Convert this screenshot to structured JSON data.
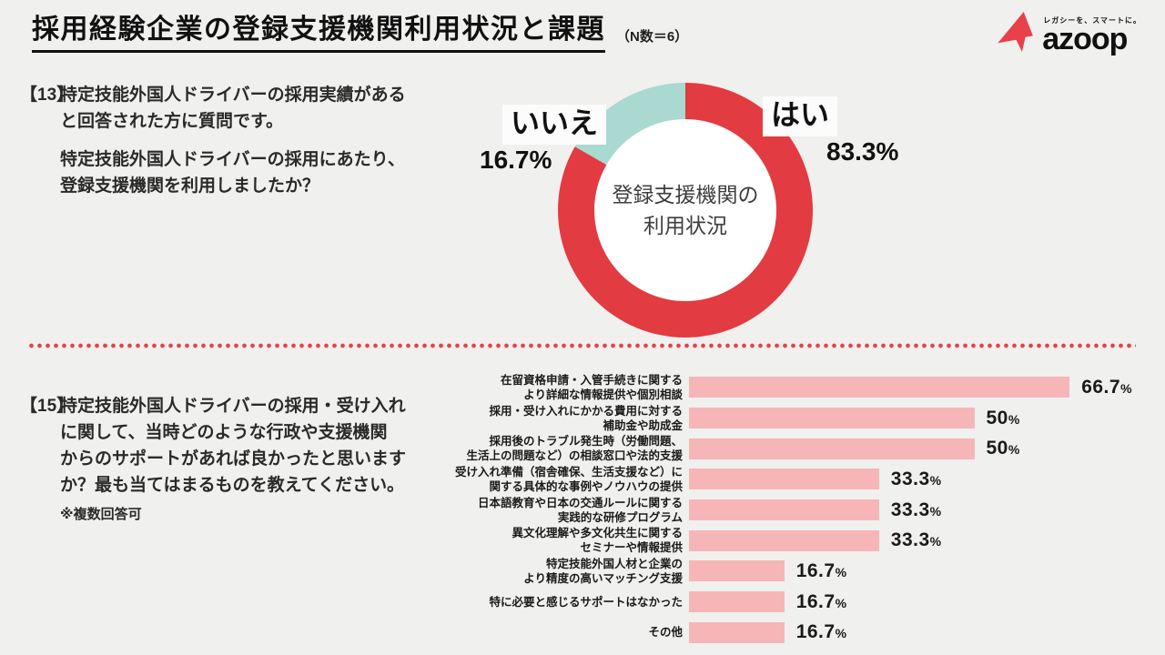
{
  "page": {
    "background": "#f0f0ee",
    "accent_red": "#e8414b"
  },
  "header": {
    "title": "採用経験企業の登録支援機関利用状況と課題",
    "n_note": "（N数＝6）"
  },
  "logo": {
    "tagline": "レガシーを、スマートに。",
    "name": "azoop",
    "mark_color": "#e8414b"
  },
  "questions": {
    "q13": {
      "number": "【13】",
      "intro": "特定技能外国人ドライバーの採用実績がある\nと回答された方に質問です。",
      "body": "特定技能外国人ドライバーの採用にあたり、\n登録支援機関を利用しましたか？"
    },
    "q15": {
      "number": "【15】",
      "body": "特定技能外国人ドライバーの採用・受け入れ\nに関して、当時どのような行政や支援機関\nからのサポートがあれば良かったと思います\nか？最も当てはまるものを教えてください。",
      "note": "※複数回答可"
    }
  },
  "divider": {
    "style": "dotted",
    "color": "#e8414b"
  },
  "chart_data": [
    {
      "type": "pie",
      "subtype": "donut",
      "title": "登録支援機関の利用状況",
      "center_label": "登録支援機関の\n利用状況",
      "start_angle_deg": 0,
      "direction": "clockwise",
      "slices": [
        {
          "label": "はい",
          "value": 83.3,
          "display": "83.3%",
          "color": "#e23b41"
        },
        {
          "label": "いいえ",
          "value": 16.7,
          "display": "16.7%",
          "color": "#a9d9d0"
        }
      ]
    },
    {
      "type": "bar",
      "orientation": "horizontal",
      "bar_color": "#f6b6b8",
      "xlim": [
        0,
        100
      ],
      "grid": false,
      "legend": false,
      "categories": [
        "在留資格申請・入管手続きに関する\nより詳細な情報提供や個別相談",
        "採用・受け入れにかかる費用に対する\n補助金や助成金",
        "採用後のトラブル発生時（労働問題、\n生活上の問題など）の相談窓口や法的支援",
        "受け入れ準備（宿舎確保、生活支援など）に\n関する具体的な事例やノウハウの提供",
        "日本語教育や日本の交通ルールに関する\n実践的な研修プログラム",
        "異文化理解や多文化共生に関する\nセミナーや情報提供",
        "特定技能外国人材と企業の\nより精度の高いマッチング支援",
        "特に必要と感じるサポートはなかった",
        "その他"
      ],
      "values": [
        66.7,
        50,
        50,
        33.3,
        33.3,
        33.3,
        16.7,
        16.7,
        16.7
      ],
      "value_labels": [
        "66.7%",
        "50%",
        "50%",
        "33.3%",
        "33.3%",
        "33.3%",
        "16.7%",
        "16.7%",
        "16.7%"
      ]
    }
  ]
}
